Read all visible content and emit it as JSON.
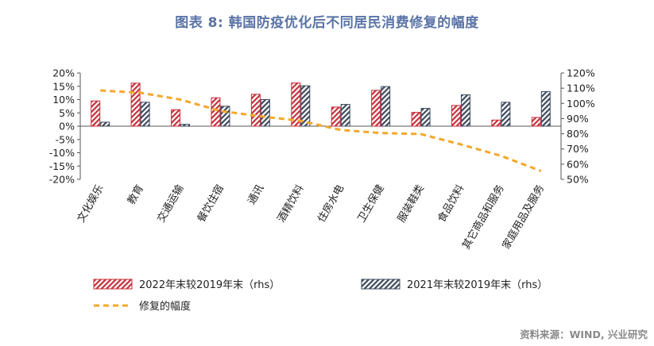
{
  "figure_title": "图表 8:  韩国防疫优化后不同居民消费修复的幅度",
  "source": "资料来源：WIND, 兴业研究",
  "colors": {
    "series1": "#c6303c",
    "series2": "#3d4a5c",
    "series3": "#f4a72a"
  },
  "chart_data": {
    "type": "bar",
    "title": "",
    "categories": [
      "文化娱乐",
      "教育",
      "交通运输",
      "餐饮住宿",
      "通讯",
      "酒精饮料",
      "住房水电",
      "卫生保健",
      "服装鞋类",
      "食品饮料",
      "其它商品和服务",
      "家庭用品及服务"
    ],
    "series": [
      {
        "name": "2022年末较2019年末（rhs）",
        "style": "hatched-red",
        "axis": "left",
        "values": [
          9.5,
          16.2,
          6.2,
          10.7,
          12.0,
          16.3,
          7.2,
          13.5,
          5.2,
          7.8,
          2.3,
          3.3
        ]
      },
      {
        "name": "2021年末较2019年末（rhs）",
        "style": "hatched-navy",
        "axis": "left",
        "values": [
          1.5,
          9.0,
          0.7,
          7.5,
          10.0,
          15.2,
          8.2,
          14.9,
          6.7,
          11.8,
          9.0,
          13.0
        ]
      },
      {
        "name": "修复的幅度",
        "style": "dashed-line",
        "axis": "right",
        "values": [
          108.5,
          107,
          102.5,
          95,
          91.5,
          88.5,
          82.5,
          80.5,
          79.8,
          73,
          65.5,
          55.5
        ]
      }
    ],
    "y_left": {
      "min": -20,
      "max": 20,
      "step": 5,
      "format": "percent"
    },
    "y_right": {
      "min": 50,
      "max": 120,
      "step": 10,
      "format": "percent"
    },
    "grid": false,
    "legend_position": "bottom"
  }
}
